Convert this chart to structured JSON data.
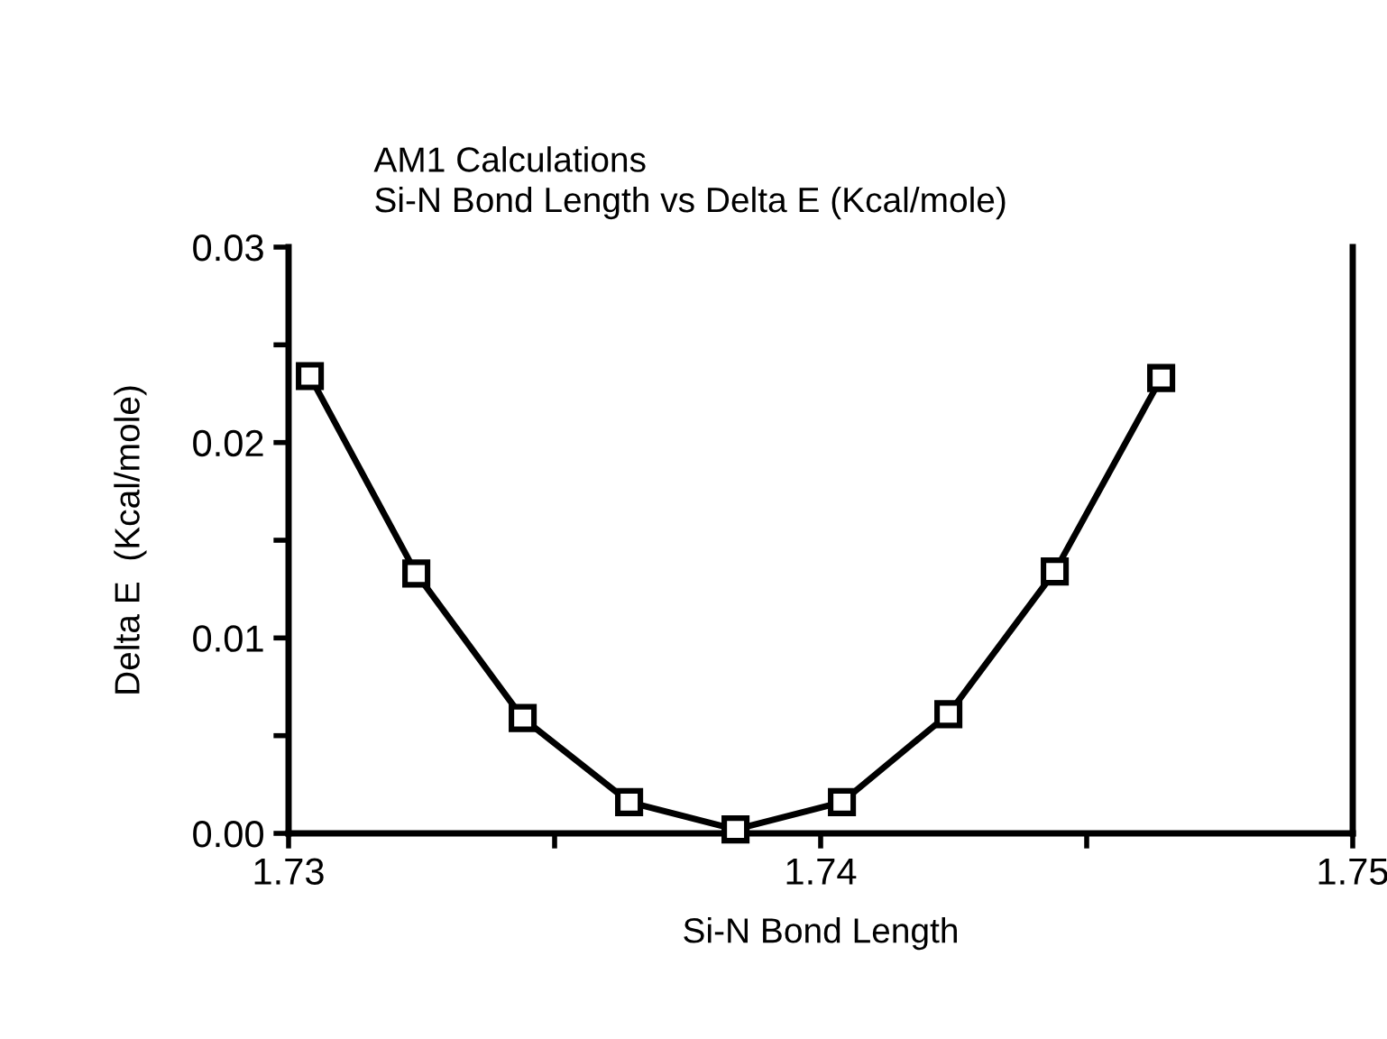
{
  "chart_data": {
    "type": "line",
    "title": "AM1 Calculations\nSi-N Bond Length vs Delta E (Kcal/mole)",
    "xlabel": "Si-N Bond Length",
    "ylabel": "Delta E  (Kcal/mole)",
    "x": [
      1.7304,
      1.7324,
      1.7344,
      1.7364,
      1.7384,
      1.7404,
      1.7424,
      1.7444,
      1.7464
    ],
    "series": [
      {
        "color": "#000000",
        "values": [
          0.0234,
          0.0133,
          0.0059,
          0.0016,
          0.0002,
          0.0016,
          0.0061,
          0.0134,
          0.0233
        ]
      }
    ],
    "xlim": [
      1.73,
      1.75
    ],
    "ylim": [
      0.0,
      0.03
    ],
    "xticks": [
      {
        "value": 1.73,
        "label": "1.73"
      },
      {
        "value": 1.735,
        "label": null
      },
      {
        "value": 1.74,
        "label": "1.74"
      },
      {
        "value": 1.745,
        "label": null
      },
      {
        "value": 1.75,
        "label": "1.75"
      }
    ],
    "yticks": [
      {
        "value": 0.0,
        "label": "0.00"
      },
      {
        "value": 0.005,
        "label": null
      },
      {
        "value": 0.01,
        "label": "0.01"
      },
      {
        "value": 0.015,
        "label": null
      },
      {
        "value": 0.02,
        "label": "0.02"
      },
      {
        "value": 0.025,
        "label": null
      },
      {
        "value": 0.03,
        "label": "0.03"
      }
    ],
    "marker": "square",
    "line_style": "solid",
    "grid": false,
    "legend": false
  }
}
